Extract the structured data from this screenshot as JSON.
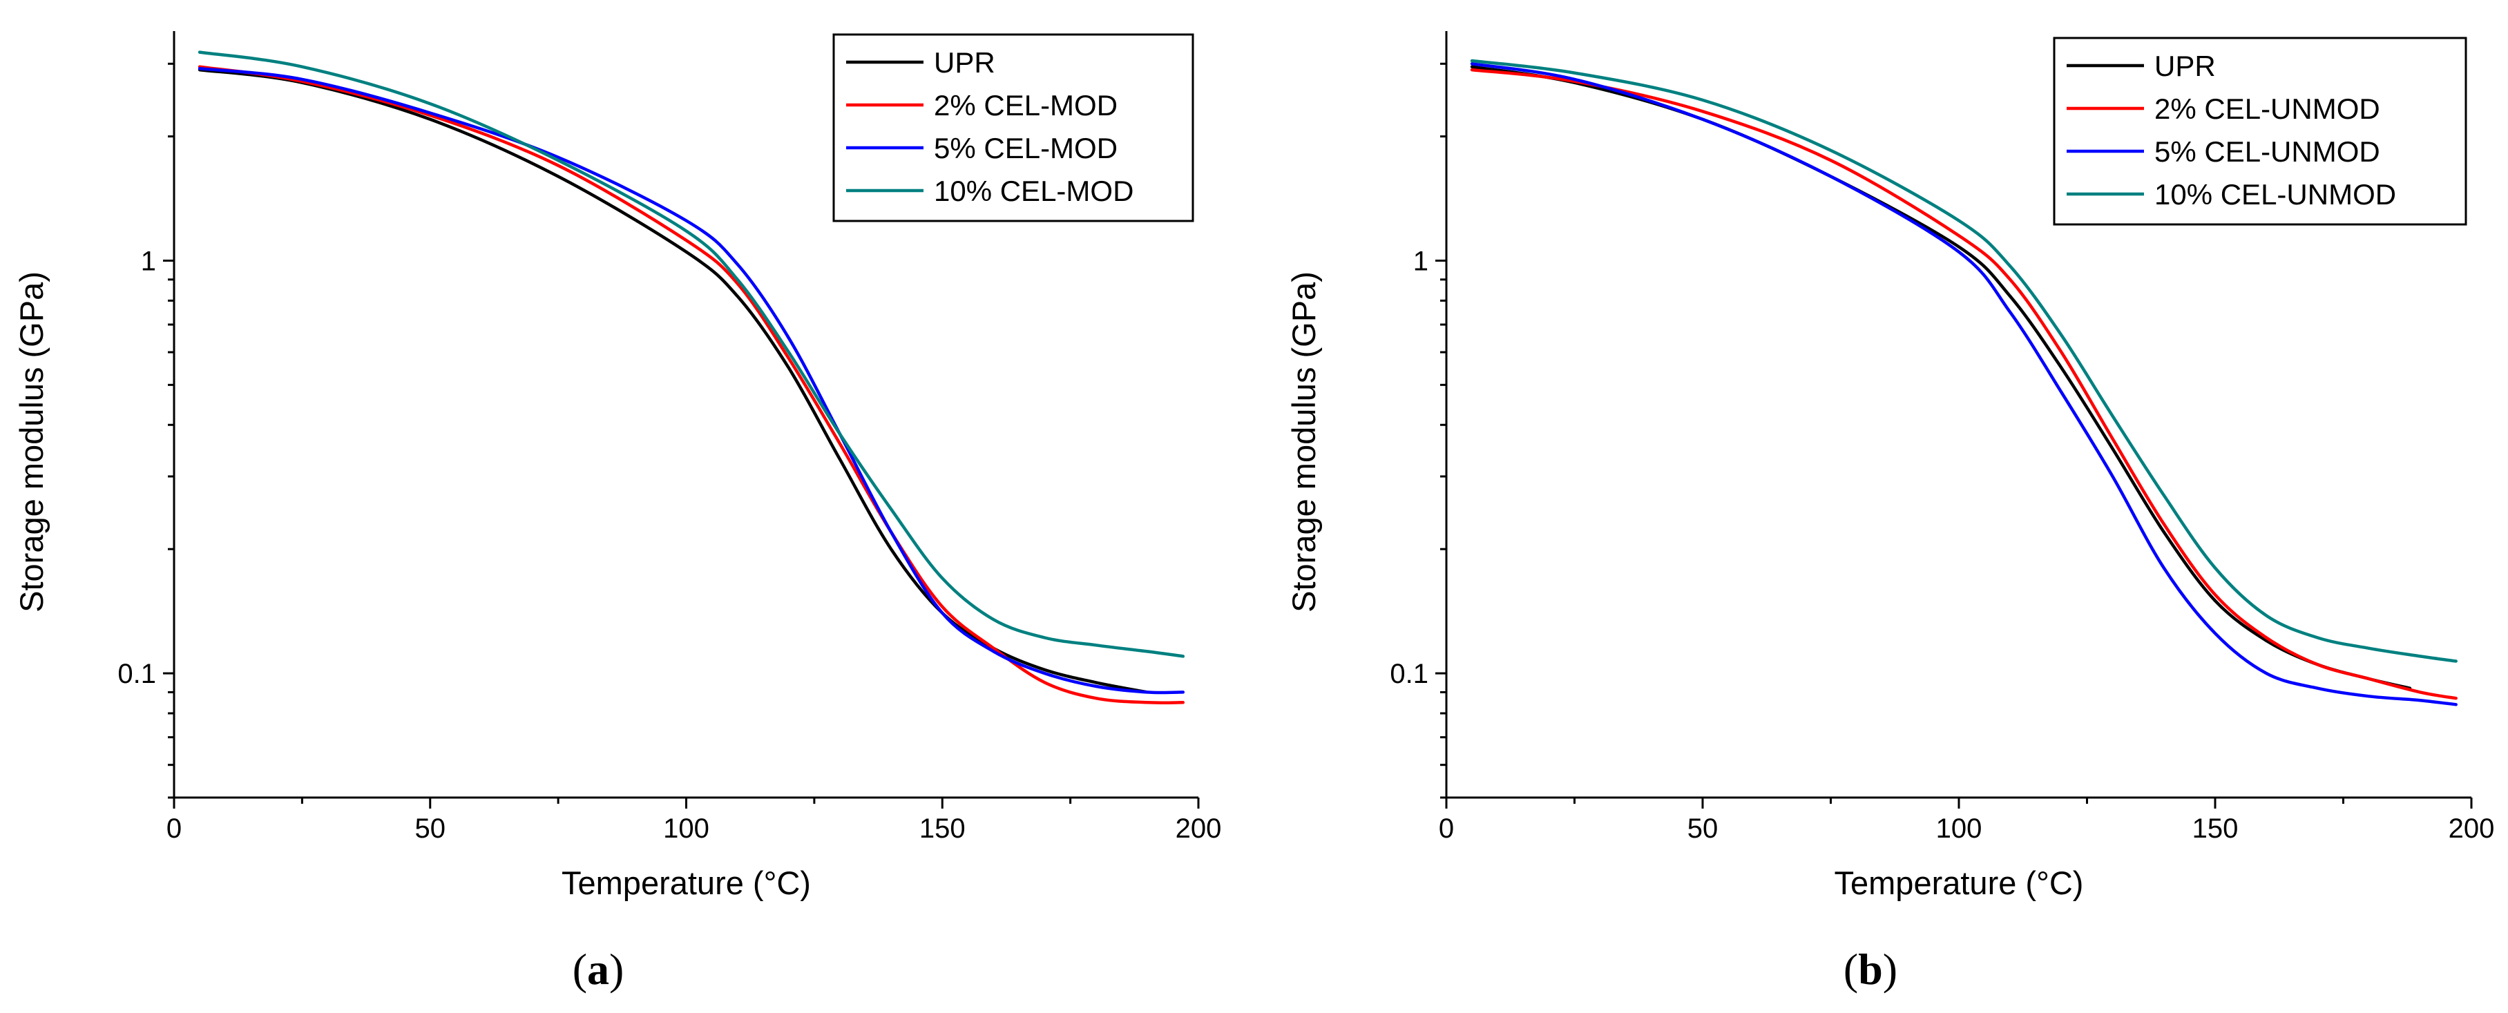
{
  "figure": {
    "panel_labels": [
      "(a)",
      "(b)"
    ]
  },
  "colors": {
    "UPR": "#000000",
    "2%": "#ff0000",
    "5%": "#0000ff",
    "10%": "#008080"
  },
  "chart_data": [
    {
      "type": "line",
      "panel": "(a)",
      "panel_letter": "a",
      "xlabel": "Temperature (°C)",
      "ylabel": "Storage modulus (GPa)",
      "xlim": [
        0,
        200
      ],
      "ylim": [
        0.05,
        3.6
      ],
      "yscale": "log",
      "x_ticks": [
        0,
        50,
        100,
        150,
        200
      ],
      "y_tick_labels": [
        {
          "value": 0.1,
          "label": "0.1"
        },
        {
          "value": 1,
          "label": "1"
        }
      ],
      "legend_position": "top-right",
      "series": [
        {
          "name": "UPR",
          "color": "#000000",
          "x": [
            5,
            25,
            50,
            75,
            100,
            110,
            120,
            130,
            140,
            150,
            160,
            170,
            180,
            190
          ],
          "y": [
            2.9,
            2.7,
            2.2,
            1.6,
            1.05,
            0.82,
            0.55,
            0.33,
            0.2,
            0.14,
            0.115,
            0.102,
            0.095,
            0.09
          ]
        },
        {
          "name": "2% CEL-MOD",
          "color": "#ff0000",
          "x": [
            5,
            25,
            50,
            75,
            100,
            110,
            120,
            130,
            140,
            150,
            160,
            170,
            180,
            190,
            197
          ],
          "y": [
            2.95,
            2.72,
            2.25,
            1.7,
            1.12,
            0.88,
            0.58,
            0.36,
            0.22,
            0.145,
            0.115,
            0.095,
            0.087,
            0.085,
            0.085
          ]
        },
        {
          "name": "5% CEL-MOD",
          "color": "#0000ff",
          "x": [
            5,
            25,
            50,
            75,
            100,
            110,
            120,
            130,
            140,
            150,
            160,
            170,
            180,
            190,
            197
          ],
          "y": [
            2.92,
            2.75,
            2.28,
            1.78,
            1.25,
            0.98,
            0.65,
            0.38,
            0.22,
            0.14,
            0.113,
            0.1,
            0.093,
            0.09,
            0.09
          ]
        },
        {
          "name": "10% CEL-MOD",
          "color": "#008080",
          "x": [
            5,
            25,
            50,
            75,
            100,
            110,
            120,
            130,
            140,
            150,
            160,
            170,
            180,
            190,
            197
          ],
          "y": [
            3.2,
            2.95,
            2.4,
            1.75,
            1.18,
            0.9,
            0.6,
            0.38,
            0.25,
            0.17,
            0.135,
            0.122,
            0.117,
            0.113,
            0.11
          ]
        }
      ]
    },
    {
      "type": "line",
      "panel": "(b)",
      "panel_letter": "b",
      "xlabel": "Temperature (°C)",
      "ylabel": "Storage modulus (GPa)",
      "xlim": [
        0,
        200
      ],
      "ylim": [
        0.05,
        3.6
      ],
      "yscale": "log",
      "x_ticks": [
        0,
        50,
        100,
        150,
        200
      ],
      "y_tick_labels": [
        {
          "value": 0.1,
          "label": "0.1"
        },
        {
          "value": 1,
          "label": "1"
        }
      ],
      "legend_position": "top-right",
      "series": [
        {
          "name": "UPR",
          "color": "#000000",
          "x": [
            5,
            25,
            50,
            75,
            100,
            110,
            120,
            130,
            140,
            150,
            160,
            170,
            180,
            188
          ],
          "y": [
            2.95,
            2.7,
            2.2,
            1.6,
            1.08,
            0.82,
            0.55,
            0.35,
            0.22,
            0.15,
            0.12,
            0.105,
            0.097,
            0.092
          ]
        },
        {
          "name": "2% CEL-UNMOD",
          "color": "#ff0000",
          "x": [
            5,
            25,
            50,
            75,
            100,
            110,
            120,
            130,
            140,
            150,
            160,
            170,
            180,
            190,
            197
          ],
          "y": [
            2.9,
            2.72,
            2.3,
            1.75,
            1.15,
            0.9,
            0.6,
            0.37,
            0.23,
            0.155,
            0.122,
            0.105,
            0.097,
            0.09,
            0.087
          ]
        },
        {
          "name": "5% CEL-UNMOD",
          "color": "#0000ff",
          "x": [
            5,
            25,
            50,
            75,
            100,
            110,
            120,
            130,
            140,
            150,
            160,
            170,
            180,
            190,
            197
          ],
          "y": [
            3.0,
            2.75,
            2.2,
            1.6,
            1.05,
            0.75,
            0.48,
            0.3,
            0.18,
            0.125,
            0.1,
            0.092,
            0.088,
            0.086,
            0.084
          ]
        },
        {
          "name": "10% CEL-UNMOD",
          "color": "#008080",
          "x": [
            5,
            25,
            50,
            75,
            100,
            110,
            120,
            130,
            140,
            150,
            160,
            170,
            180,
            190,
            197
          ],
          "y": [
            3.05,
            2.85,
            2.45,
            1.85,
            1.25,
            0.97,
            0.66,
            0.42,
            0.27,
            0.18,
            0.138,
            0.122,
            0.115,
            0.11,
            0.107
          ]
        }
      ]
    }
  ]
}
